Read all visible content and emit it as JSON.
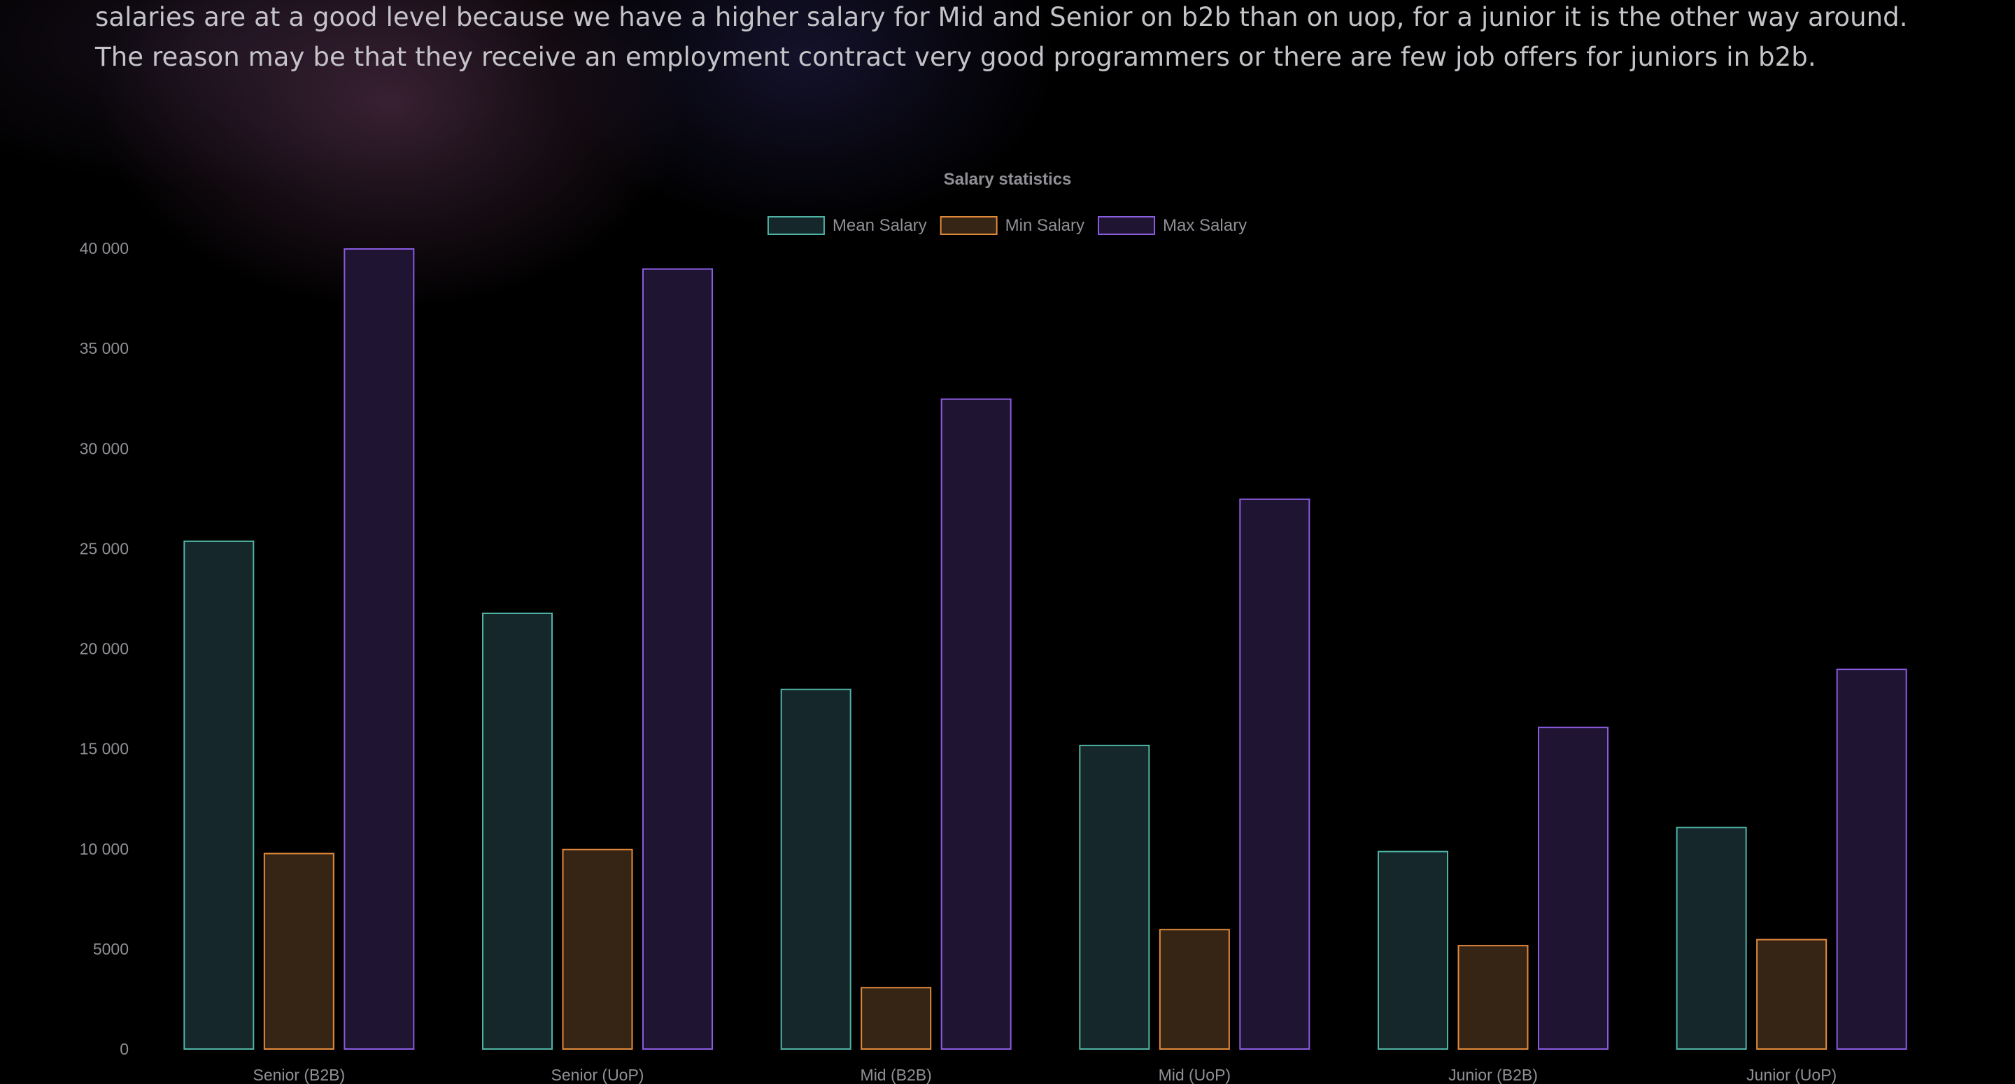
{
  "intro_text": "salaries are at a good level because we have a higher salary for Mid and Senior on b2b than on uop, for a junior it is the other way around. The reason may be that they receive an employment contract very good programmers or there are few job offers for juniors in b2b.",
  "chart_data": {
    "type": "bar",
    "title": "Salary statistics",
    "categories": [
      "Senior (B2B)",
      "Senior (UoP)",
      "Mid (B2B)",
      "Mid (UoP)",
      "Junior (B2B)",
      "Junior (UoP)"
    ],
    "series": [
      {
        "name": "Mean Salary",
        "values": [
          25400,
          21800,
          18000,
          15200,
          9900,
          11100
        ],
        "color": "#4fb3a4",
        "fill": "#15272a"
      },
      {
        "name": "Min Salary",
        "values": [
          9800,
          10000,
          3100,
          6000,
          5200,
          5500
        ],
        "color": "#e08a3c",
        "fill": "#362414"
      },
      {
        "name": "Max Salary",
        "values": [
          40000,
          39000,
          32500,
          27500,
          16100,
          19000
        ],
        "color": "#8a5ce0",
        "fill": "#1f1431"
      }
    ],
    "y_ticks": [
      "0",
      "5000",
      "10 000",
      "15 000",
      "20 000",
      "25 000",
      "30 000",
      "35 000",
      "40 000"
    ],
    "ylim": [
      0,
      40000
    ],
    "xlabel": "",
    "ylabel": "",
    "legend_position": "top",
    "grid": false
  }
}
